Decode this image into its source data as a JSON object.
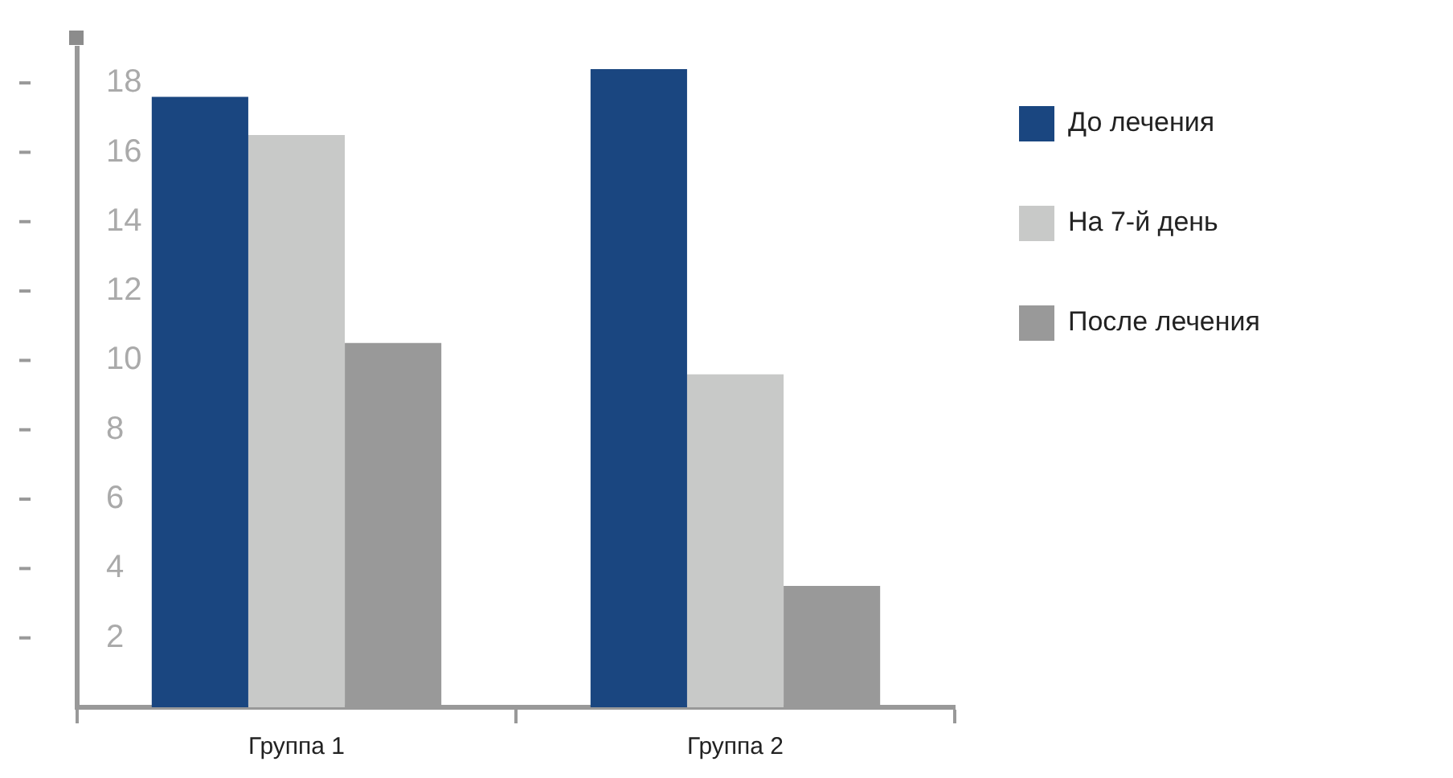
{
  "chart_data": {
    "type": "bar",
    "categories": [
      "Группа 1",
      "Группа 2"
    ],
    "series": [
      {
        "name": "До лечения",
        "color": "#1a4680",
        "values": [
          17.6,
          18.4
        ]
      },
      {
        "name": "На 7-й день",
        "color": "#c8c9c8",
        "values": [
          16.5,
          9.6
        ]
      },
      {
        "name": "После лечения",
        "color": "#999999",
        "values": [
          10.5,
          3.5
        ]
      }
    ],
    "ylim": [
      0,
      19
    ],
    "yticks": [
      2,
      4,
      6,
      8,
      10,
      12,
      14,
      16,
      18
    ],
    "grid": false,
    "legend": "right"
  }
}
